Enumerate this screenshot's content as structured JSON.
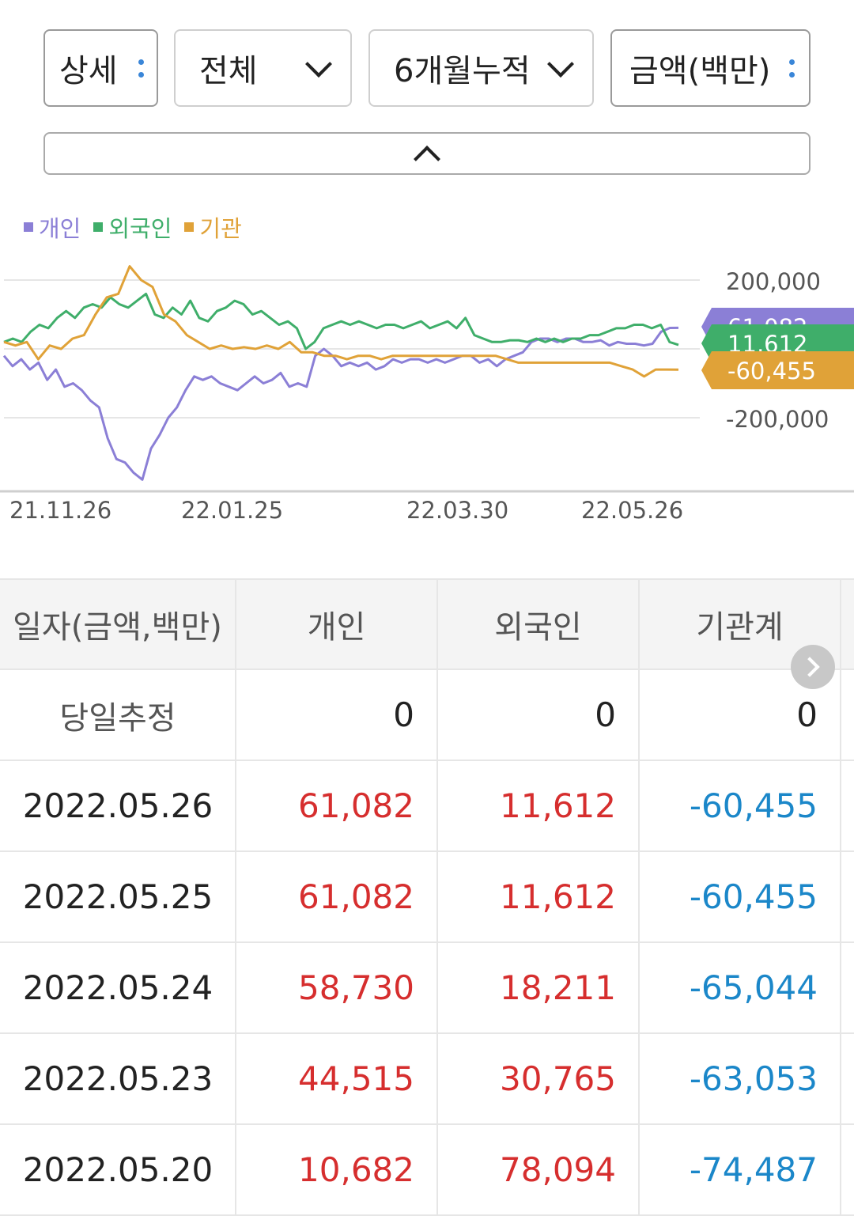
{
  "controls": {
    "detail": "상세",
    "scope": "전체",
    "period": "6개월누적",
    "unit": "금액(백만)"
  },
  "legend": [
    {
      "label": "개인",
      "color": "#8b7fd6"
    },
    {
      "label": "외국인",
      "color": "#3fae6a"
    },
    {
      "label": "기관",
      "color": "#e0a238"
    }
  ],
  "chart_data": {
    "type": "line",
    "x_ticks": [
      "21.11.26",
      "22.01.25",
      "22.03.30",
      "22.05.26"
    ],
    "y_ticks": [
      "200,000",
      "-200,000"
    ],
    "ylim": [
      -400000,
      400000
    ],
    "series": [
      {
        "name": "개인",
        "color": "#8b7fd6",
        "end_label": "61,082",
        "values": [
          -20000,
          -50000,
          -30000,
          -60000,
          -40000,
          -90000,
          -60000,
          -110000,
          -100000,
          -120000,
          -150000,
          -170000,
          -260000,
          -320000,
          -330000,
          -360000,
          -380000,
          -290000,
          -250000,
          -200000,
          -170000,
          -120000,
          -80000,
          -90000,
          -80000,
          -100000,
          -110000,
          -120000,
          -100000,
          -80000,
          -100000,
          -90000,
          -70000,
          -110000,
          -100000,
          -110000,
          -20000,
          0,
          -20000,
          -50000,
          -40000,
          -50000,
          -40000,
          -60000,
          -50000,
          -30000,
          -40000,
          -30000,
          -30000,
          -40000,
          -30000,
          -40000,
          -30000,
          -20000,
          -20000,
          -40000,
          -30000,
          -50000,
          -30000,
          -20000,
          -10000,
          20000,
          30000,
          30000,
          20000,
          30000,
          30000,
          20000,
          20000,
          25000,
          10000,
          20000,
          15000,
          15000,
          10000,
          15000,
          50000,
          61000,
          61082
        ]
      },
      {
        "name": "외국인",
        "color": "#3fae6a",
        "end_label": "11,612",
        "values": [
          20000,
          30000,
          20000,
          50000,
          70000,
          60000,
          90000,
          110000,
          90000,
          120000,
          130000,
          120000,
          150000,
          130000,
          120000,
          140000,
          160000,
          100000,
          90000,
          120000,
          100000,
          140000,
          90000,
          80000,
          110000,
          120000,
          140000,
          130000,
          100000,
          110000,
          90000,
          70000,
          80000,
          60000,
          0,
          20000,
          60000,
          70000,
          80000,
          70000,
          80000,
          70000,
          60000,
          70000,
          70000,
          60000,
          70000,
          80000,
          60000,
          70000,
          80000,
          60000,
          90000,
          40000,
          30000,
          20000,
          20000,
          25000,
          25000,
          20000,
          30000,
          20000,
          30000,
          20000,
          30000,
          30000,
          40000,
          40000,
          50000,
          60000,
          60000,
          70000,
          70000,
          60000,
          70000,
          20000,
          11612
        ]
      },
      {
        "name": "기관",
        "color": "#e0a238",
        "end_label": "-60,455",
        "values": [
          20000,
          10000,
          20000,
          -30000,
          10000,
          0,
          30000,
          40000,
          100000,
          150000,
          160000,
          240000,
          200000,
          180000,
          100000,
          80000,
          40000,
          20000,
          0,
          10000,
          0,
          5000,
          0,
          10000,
          0,
          20000,
          -10000,
          -10000,
          -20000,
          -20000,
          -30000,
          -20000,
          -20000,
          -30000,
          -20000,
          -20000,
          -20000,
          -20000,
          -20000,
          -20000,
          -20000,
          -20000,
          -20000,
          -20000,
          -30000,
          -40000,
          -40000,
          -40000,
          -40000,
          -40000,
          -40000,
          -40000,
          -40000,
          -40000,
          -50000,
          -60000,
          -80000,
          -60000,
          -60000,
          -60455
        ]
      }
    ]
  },
  "table": {
    "headers": [
      "일자(금액,백만)",
      "개인",
      "외국인",
      "기관계"
    ],
    "rows": [
      {
        "date": "당일추정",
        "individual": "0",
        "foreign": "0",
        "institution": "0"
      },
      {
        "date": "2022.05.26",
        "individual": "61,082",
        "foreign": "11,612",
        "institution": "-60,455"
      },
      {
        "date": "2022.05.25",
        "individual": "61,082",
        "foreign": "11,612",
        "institution": "-60,455"
      },
      {
        "date": "2022.05.24",
        "individual": "58,730",
        "foreign": "18,211",
        "institution": "-65,044"
      },
      {
        "date": "2022.05.23",
        "individual": "44,515",
        "foreign": "30,765",
        "institution": "-63,053"
      },
      {
        "date": "2022.05.20",
        "individual": "10,682",
        "foreign": "78,094",
        "institution": "-74,487"
      }
    ]
  }
}
